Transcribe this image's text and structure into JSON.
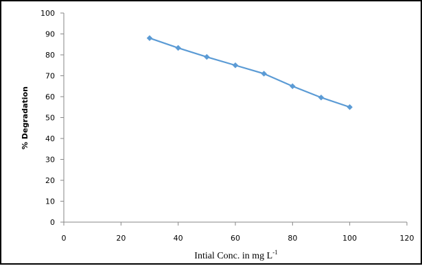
{
  "chart_data": {
    "type": "line",
    "title": "",
    "xlabel": "Intial Conc. in mg L",
    "xlabel_superscript": "-1",
    "ylabel": "% Degradation",
    "xlim": [
      0,
      120
    ],
    "ylim": [
      0,
      100
    ],
    "xticks": [
      "0",
      "20",
      "40",
      "60",
      "80",
      "100",
      "120"
    ],
    "yticks": [
      "0",
      "10",
      "20",
      "30",
      "40",
      "50",
      "60",
      "70",
      "80",
      "90",
      "100"
    ],
    "grid": false,
    "legend": "none",
    "series_color": "#5b9bd5",
    "x": [
      30,
      40,
      50,
      60,
      70,
      80,
      90,
      100
    ],
    "series": [
      {
        "values": [
          88,
          83.3,
          79,
          75,
          71,
          65,
          59.6,
          55
        ]
      }
    ]
  }
}
